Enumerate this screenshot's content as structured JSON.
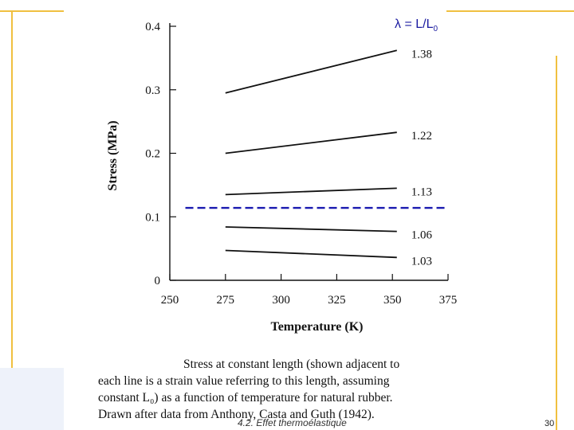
{
  "slide": {
    "footer": "4.2. Effet thermoélastique",
    "page_number": "30",
    "lambda_label": "λ = L/L",
    "lambda_sub": "0",
    "accent_color": "#f0c040",
    "ref_line_color": "#1a1ab0"
  },
  "caption": {
    "line1": "Stress at constant length (shown adjacent to",
    "line2": "each line is a strain value referring to this length, assuming",
    "line3": "constant L₀) as a function of temperature for natural rubber.",
    "line4": "Drawn after data from Anthony, Casta and Guth (1942)."
  },
  "chart_data": {
    "type": "line",
    "title": "",
    "xlabel": "Temperature (K)",
    "ylabel": "Stress (MPa)",
    "xlim": [
      250,
      375
    ],
    "ylim": [
      0,
      0.4
    ],
    "xticks": [
      250,
      275,
      300,
      325,
      350,
      375
    ],
    "xtick_labels": [
      "250",
      "275",
      "300",
      "325",
      "350",
      "375"
    ],
    "yticks": [
      0,
      0.1,
      0.2,
      0.3,
      0.4
    ],
    "ytick_labels": [
      "0",
      "0.1",
      "0.2",
      "0.3",
      "0.4"
    ],
    "series": [
      {
        "name": "1.38",
        "x": [
          275,
          352
        ],
        "values": [
          0.295,
          0.362
        ]
      },
      {
        "name": "1.22",
        "x": [
          275,
          352
        ],
        "values": [
          0.2,
          0.233
        ]
      },
      {
        "name": "1.13",
        "x": [
          275,
          352
        ],
        "values": [
          0.135,
          0.145
        ]
      },
      {
        "name": "1.06",
        "x": [
          275,
          352
        ],
        "values": [
          0.084,
          0.077
        ]
      },
      {
        "name": "1.03",
        "x": [
          275,
          352
        ],
        "values": [
          0.047,
          0.036
        ]
      }
    ],
    "reference_line": {
      "y": 0.114,
      "x": [
        257,
        375
      ],
      "style": "dashed"
    }
  }
}
